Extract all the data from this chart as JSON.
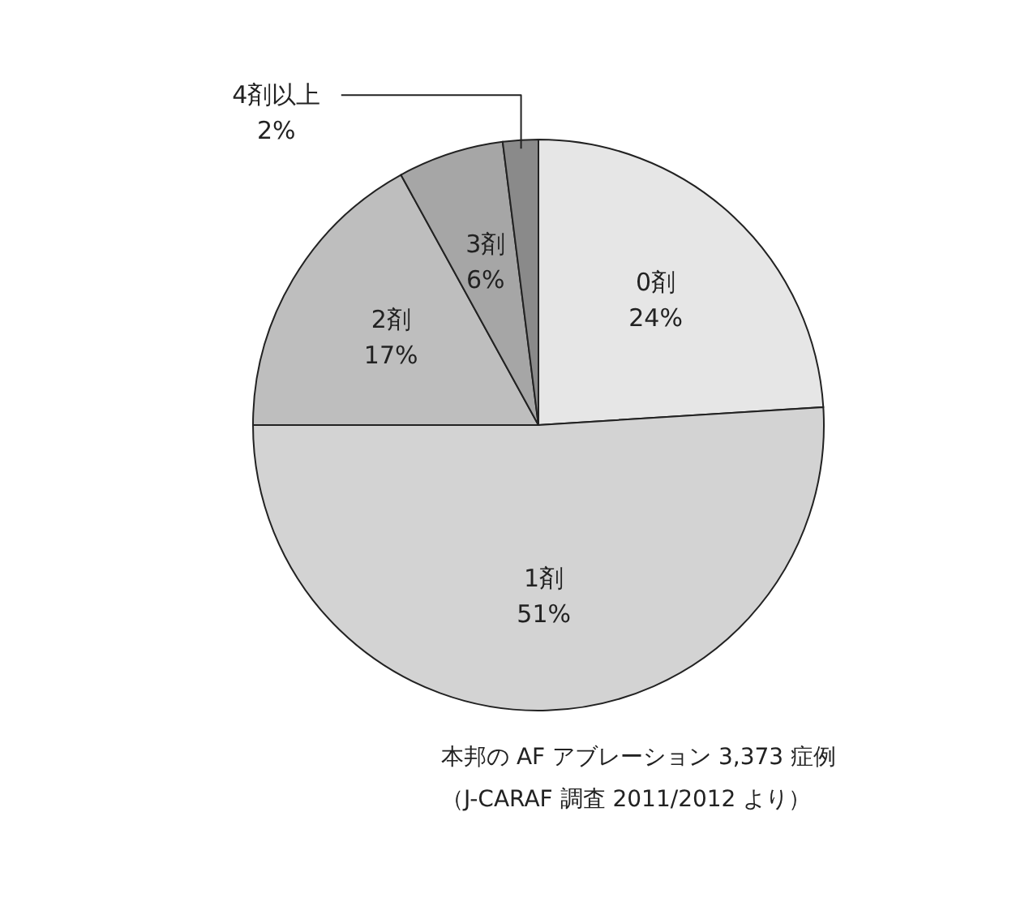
{
  "chart_data": {
    "type": "pie",
    "categories": [
      "0剤",
      "1剤",
      "2剤",
      "3剤",
      "4剤以上"
    ],
    "values": [
      24,
      51,
      17,
      6,
      2
    ],
    "value_labels": [
      "24%",
      "51%",
      "17%",
      "6%",
      "2%"
    ],
    "colors": [
      "#e6e6e6",
      "#d3d3d3",
      "#bebebe",
      "#a6a6a6",
      "#8a8a8a"
    ],
    "annotations": [
      "本邦の AF アブレーション 3,373 症例",
      "（J-CARAF 調査 2011/2012 より）"
    ]
  }
}
